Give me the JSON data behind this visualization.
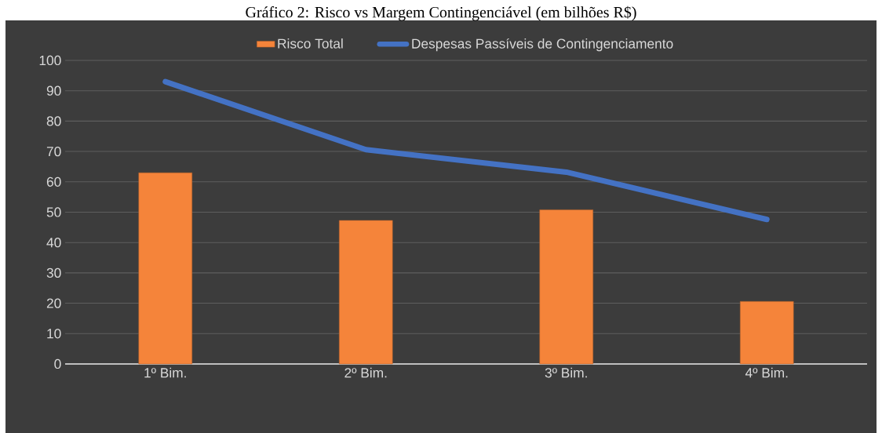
{
  "chart_data": {
    "type": "bar",
    "title": "Gráfico 2: Risco vs Margem Contingenciável (em bilhões R$)",
    "categories": [
      "1º Bim.",
      "2º Bim.",
      "3º Bim.",
      "4º Bim."
    ],
    "series": [
      {
        "name": "Risco Total",
        "color": "#f5843a",
        "values": [
          63,
          47.3,
          50.8,
          20.6
        ]
      },
      {
        "name": "Despesas Passíveis de Contingenciamento",
        "type": "line",
        "color": "#4472c4",
        "values": [
          93,
          70.6,
          63.2,
          47.6
        ]
      }
    ],
    "ylim": [
      0,
      100
    ],
    "yticks": [
      0,
      10,
      20,
      30,
      40,
      50,
      60,
      70,
      80,
      90,
      100
    ],
    "grid": "y",
    "legend": "top"
  }
}
